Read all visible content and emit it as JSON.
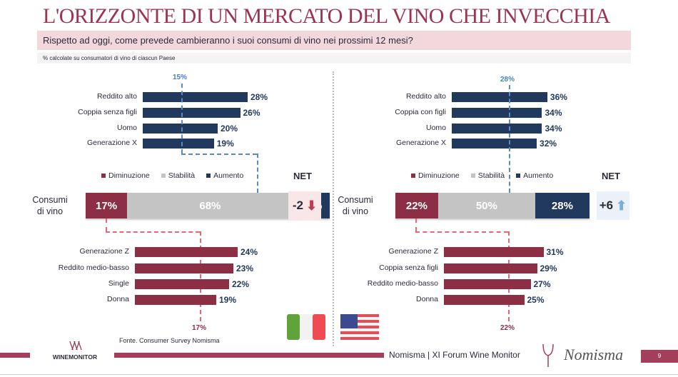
{
  "title": "L'ORIZZONTE DI UN MERCATO DEL VINO CHE INVECCHIA",
  "question": "Rispetto ad oggi, come prevede cambieranno i suoi consumi di vino nei prossimi 12 mesi?",
  "note": "% calcolate su consumatori di vino di ciascun Paese",
  "legend": {
    "decrease": "Diminuzione",
    "stable": "Stabilità",
    "increase": "Aumento"
  },
  "colors": {
    "decrease": "#8c2f45",
    "stable": "#c4c4c4",
    "increase": "#22395e",
    "title": "#9b3450"
  },
  "net_label": "NET",
  "row_label": [
    "Consumi",
    "di vino"
  ],
  "panels": [
    {
      "country": "Italia",
      "flag": "italy-flag",
      "top_marker": "15%",
      "bottom_marker": "17%",
      "top": [
        {
          "label": "Reddito alto",
          "value": 28
        },
        {
          "label": "Coppia senza figli",
          "value": 26
        },
        {
          "label": "Uomo",
          "value": 20
        },
        {
          "label": "Generazione X",
          "value": 19
        }
      ],
      "stack": {
        "decrease": "17%",
        "stable": "68%",
        "increase": "15%"
      },
      "net": "-2",
      "net_direction": "down",
      "bottom": [
        {
          "label": "Generazione Z",
          "value": 24
        },
        {
          "label": "Reddito medio-basso",
          "value": 23
        },
        {
          "label": "Single",
          "value": 22
        },
        {
          "label": "Donna",
          "value": 19
        }
      ]
    },
    {
      "country": "USA",
      "flag": "usa-flag",
      "top_marker": "28%",
      "bottom_marker": "22%",
      "top": [
        {
          "label": "Reddito alto",
          "value": 36
        },
        {
          "label": "Coppia con figli",
          "value": 34
        },
        {
          "label": "Uomo",
          "value": 34
        },
        {
          "label": "Generazione X",
          "value": 32
        }
      ],
      "stack": {
        "decrease": "22%",
        "stable": "50%",
        "increase": "28%"
      },
      "net": "+6",
      "net_direction": "up",
      "bottom": [
        {
          "label": "Generazione Z",
          "value": 31
        },
        {
          "label": "Coppia senza figli",
          "value": 29
        },
        {
          "label": "Reddito medio-basso",
          "value": 27
        },
        {
          "label": "Donna",
          "value": 25
        }
      ]
    }
  ],
  "footer": {
    "source": "Fonte. Consumer Survey Nomisma",
    "event": "Nomisma | XI Forum Wine Monitor",
    "page": "9",
    "logo_left": "WINEMONITOR",
    "logo_right": "Nomisma"
  }
}
